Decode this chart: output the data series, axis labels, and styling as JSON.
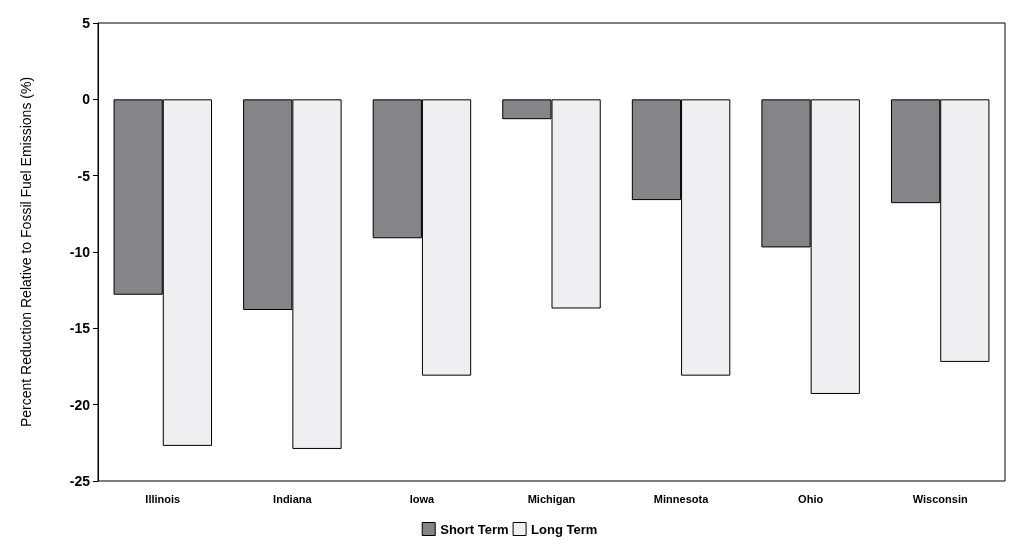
{
  "chart_data": {
    "type": "bar",
    "ylabel": "Percent Reduction Relative to Fossil Fuel Emissions (%)",
    "categories": [
      "Illinois",
      "Indiana",
      "Iowa",
      "Michigan",
      "Minnesota",
      "Ohio",
      "Wisconsin"
    ],
    "series": [
      {
        "name": "Short Term",
        "color": "#858589",
        "values": [
          -12.8,
          -13.8,
          -9.1,
          -1.3,
          -6.6,
          -9.7,
          -6.8
        ]
      },
      {
        "name": "Long Term",
        "color": "#efeff1",
        "values": [
          -22.7,
          -22.9,
          -18.1,
          -13.7,
          -18.1,
          -19.3,
          -17.2
        ]
      }
    ],
    "ylim": [
      -25,
      5
    ],
    "yticks": [
      -25,
      -20,
      -15,
      -10,
      -5,
      0,
      5
    ],
    "grid": false,
    "legend": "bottom"
  }
}
